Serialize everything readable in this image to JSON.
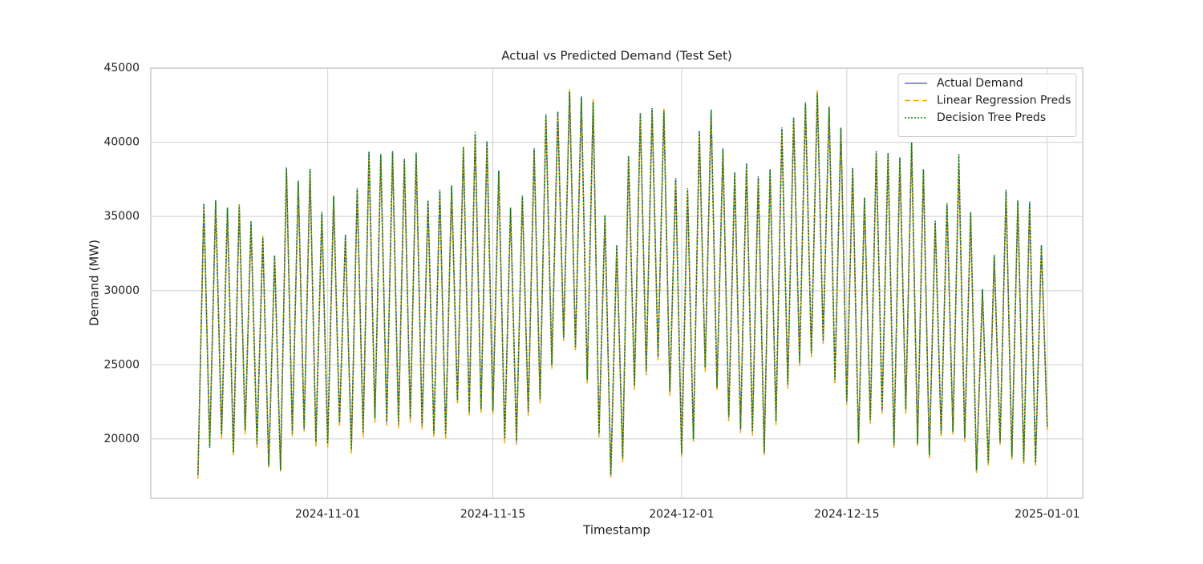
{
  "chart_data": {
    "type": "line",
    "title": "Actual vs Predicted Demand (Test Set)",
    "x_label": "Timestamp",
    "y_label": "Demand (MW)",
    "x": [
      "2024-10-21",
      "2024-10-21",
      "2024-10-22",
      "2024-10-22",
      "2024-10-23",
      "2024-10-23",
      "2024-10-24",
      "2024-10-24",
      "2024-10-25",
      "2024-10-25",
      "2024-10-26",
      "2024-10-26",
      "2024-10-27",
      "2024-10-27",
      "2024-10-28",
      "2024-10-28",
      "2024-10-29",
      "2024-10-29",
      "2024-10-30",
      "2024-10-30",
      "2024-10-31",
      "2024-10-31",
      "2024-11-01",
      "2024-11-01",
      "2024-11-02",
      "2024-11-02",
      "2024-11-03",
      "2024-11-03",
      "2024-11-04",
      "2024-11-04",
      "2024-11-05",
      "2024-11-05",
      "2024-11-06",
      "2024-11-06",
      "2024-11-07",
      "2024-11-07",
      "2024-11-08",
      "2024-11-08",
      "2024-11-09",
      "2024-11-09",
      "2024-11-10",
      "2024-11-10",
      "2024-11-11",
      "2024-11-11",
      "2024-11-12",
      "2024-11-12",
      "2024-11-13",
      "2024-11-13",
      "2024-11-14",
      "2024-11-14",
      "2024-11-15",
      "2024-11-15",
      "2024-11-16",
      "2024-11-16",
      "2024-11-17",
      "2024-11-17",
      "2024-11-18",
      "2024-11-18",
      "2024-11-19",
      "2024-11-19",
      "2024-11-20",
      "2024-11-20",
      "2024-11-21",
      "2024-11-21",
      "2024-11-22",
      "2024-11-22",
      "2024-11-23",
      "2024-11-23",
      "2024-11-24",
      "2024-11-24",
      "2024-11-25",
      "2024-11-25",
      "2024-11-26",
      "2024-11-26",
      "2024-11-27",
      "2024-11-27",
      "2024-11-28",
      "2024-11-28",
      "2024-11-29",
      "2024-11-29",
      "2024-11-30",
      "2024-11-30",
      "2024-12-01",
      "2024-12-01",
      "2024-12-02",
      "2024-12-02",
      "2024-12-03",
      "2024-12-03",
      "2024-12-04",
      "2024-12-04",
      "2024-12-05",
      "2024-12-05",
      "2024-12-06",
      "2024-12-06",
      "2024-12-07",
      "2024-12-07",
      "2024-12-08",
      "2024-12-08",
      "2024-12-09",
      "2024-12-09",
      "2024-12-10",
      "2024-12-10",
      "2024-12-11",
      "2024-12-11",
      "2024-12-12",
      "2024-12-12",
      "2024-12-13",
      "2024-12-13",
      "2024-12-14",
      "2024-12-14",
      "2024-12-15",
      "2024-12-15",
      "2024-12-16",
      "2024-12-16",
      "2024-12-17",
      "2024-12-17",
      "2024-12-18",
      "2024-12-18",
      "2024-12-19",
      "2024-12-19",
      "2024-12-20",
      "2024-12-20",
      "2024-12-21",
      "2024-12-21",
      "2024-12-22",
      "2024-12-22",
      "2024-12-23",
      "2024-12-23",
      "2024-12-24",
      "2024-12-24",
      "2024-12-25",
      "2024-12-25",
      "2024-12-26",
      "2024-12-26",
      "2024-12-27",
      "2024-12-27",
      "2024-12-28",
      "2024-12-28",
      "2024-12-29",
      "2024-12-29",
      "2024-12-30",
      "2024-12-30",
      "2024-12-31",
      "2024-12-31",
      "2025-01-01"
    ],
    "series": [
      {
        "name": "Actual Demand",
        "color": "#6464f0",
        "linestyle": "solid",
        "values": [
          17500,
          35800,
          19500,
          36000,
          20200,
          35500,
          19000,
          35700,
          20500,
          34500,
          19600,
          33500,
          18100,
          32300,
          17900,
          38200,
          20300,
          37300,
          20600,
          38100,
          19700,
          35200,
          19600,
          36300,
          21000,
          33700,
          19200,
          36800,
          20300,
          39300,
          21300,
          39100,
          21100,
          39300,
          20900,
          38800,
          21300,
          39200,
          20800,
          36000,
          20300,
          36700,
          20200,
          37000,
          22500,
          39600,
          21700,
          40500,
          21900,
          40000,
          21800,
          38000,
          19900,
          35500,
          19800,
          36300,
          21700,
          39500,
          22600,
          41800,
          24900,
          42000,
          26800,
          43500,
          26100,
          43100,
          23900,
          42800,
          20300,
          35000,
          17500,
          33000,
          18600,
          39000,
          23500,
          41900,
          24500,
          42200,
          25500,
          42200,
          23100,
          37500,
          18900,
          36800,
          19900,
          40700,
          24700,
          42100,
          23400,
          39500,
          21400,
          37900,
          20600,
          38500,
          20400,
          37600,
          19000,
          38100,
          21100,
          40900,
          23600,
          41600,
          25100,
          42600,
          25700,
          43400,
          26600,
          42300,
          23900,
          40900,
          22500,
          38200,
          19700,
          36200,
          21200,
          39300,
          21900,
          39200,
          19500,
          38900,
          21900,
          39900,
          19600,
          38100,
          18800,
          34600,
          20300,
          35800,
          20400,
          38500,
          20000,
          35200,
          17800,
          30000,
          18300,
          32300,
          19700,
          36700,
          18700,
          36000,
          18400,
          35900,
          18300,
          33000,
          20700
        ]
      },
      {
        "name": "Linear Regression Preds",
        "color": "orange",
        "linestyle": "dashed",
        "values": [
          17300,
          35600,
          19700,
          35900,
          20000,
          35300,
          18900,
          35800,
          20300,
          34300,
          19400,
          33700,
          18000,
          32100,
          17800,
          38000,
          20100,
          37100,
          20500,
          37900,
          19500,
          35000,
          19400,
          36100,
          20800,
          33500,
          19000,
          36600,
          20100,
          39000,
          21100,
          38900,
          20900,
          39100,
          20700,
          38600,
          21100,
          39000,
          20600,
          35800,
          20100,
          36500,
          20000,
          36800,
          22300,
          39700,
          21500,
          40300,
          21700,
          39800,
          21600,
          37800,
          19700,
          35300,
          19600,
          36100,
          21500,
          39300,
          22400,
          41600,
          24700,
          41800,
          26600,
          43600,
          25900,
          42900,
          23700,
          42900,
          20100,
          34800,
          17400,
          32800,
          18400,
          38800,
          23300,
          41700,
          24300,
          42000,
          25300,
          42300,
          22900,
          37300,
          18800,
          36600,
          19800,
          40500,
          24500,
          41900,
          23200,
          39300,
          21200,
          37700,
          20400,
          38300,
          20200,
          37400,
          18900,
          37900,
          20900,
          40700,
          23400,
          41400,
          24900,
          42400,
          25500,
          43500,
          26400,
          42100,
          23700,
          40700,
          22300,
          38000,
          19600,
          36000,
          21000,
          39100,
          21700,
          39000,
          19400,
          38700,
          21700,
          39700,
          19500,
          37900,
          18700,
          34400,
          20100,
          35600,
          20200,
          38300,
          19800,
          35000,
          17700,
          29800,
          18200,
          32100,
          19600,
          36500,
          18600,
          35800,
          18300,
          35700,
          18200,
          32800,
          20600
        ]
      },
      {
        "name": "Decision Tree Preds",
        "color": "green",
        "linestyle": "dotted",
        "values": [
          17600,
          35900,
          19400,
          36100,
          20300,
          35600,
          19100,
          35800,
          20600,
          34700,
          19700,
          33600,
          18200,
          32400,
          17900,
          38300,
          20400,
          37400,
          20700,
          38200,
          19800,
          35300,
          19700,
          36400,
          21100,
          33800,
          19300,
          36900,
          20400,
          39400,
          21400,
          39200,
          21200,
          39400,
          21000,
          38900,
          21400,
          39300,
          20900,
          36100,
          20400,
          36800,
          20300,
          37100,
          22600,
          39700,
          21800,
          40700,
          22000,
          40100,
          21900,
          38100,
          20000,
          35600,
          19900,
          36400,
          21800,
          39600,
          22700,
          41900,
          25000,
          42100,
          26900,
          43400,
          26200,
          43000,
          24000,
          42700,
          20400,
          35100,
          17600,
          33100,
          18700,
          39100,
          23600,
          42000,
          24600,
          42300,
          25600,
          42100,
          23200,
          37600,
          19000,
          36900,
          20000,
          40800,
          24800,
          42200,
          23500,
          39600,
          21500,
          38000,
          20700,
          38600,
          20500,
          37700,
          19100,
          38200,
          21200,
          41000,
          23700,
          41700,
          25200,
          42700,
          25800,
          43300,
          26700,
          42400,
          24000,
          41000,
          22600,
          38300,
          19800,
          36300,
          21300,
          39400,
          22000,
          39300,
          19600,
          39000,
          22000,
          40000,
          19700,
          38200,
          18900,
          34700,
          20400,
          35900,
          20500,
          39200,
          20100,
          35300,
          17900,
          30100,
          18400,
          32400,
          19800,
          36800,
          18800,
          36100,
          18500,
          36000,
          18400,
          33100,
          20800
        ]
      }
    ],
    "xlim": [
      "2024-10-17",
      "2025-01-04"
    ],
    "xticks": [
      "2024-11-01",
      "2024-11-15",
      "2024-12-01",
      "2024-12-15",
      "2025-01-01"
    ],
    "ylim": [
      16000,
      45000
    ],
    "yticks": [
      20000,
      25000,
      30000,
      35000,
      40000,
      45000
    ],
    "grid": true,
    "legend": "upper right"
  }
}
